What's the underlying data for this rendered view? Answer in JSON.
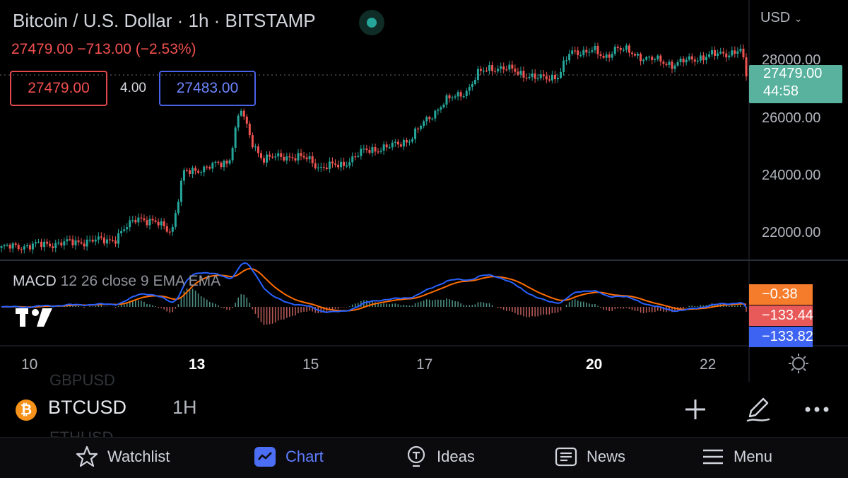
{
  "header": {
    "title": "Bitcoin / U.S. Dollar · 1h · BITSTAMP",
    "quote": "27479.00 −713.00 (−2.53%)",
    "sell_price": "27479.00",
    "spread": "4.00",
    "buy_price": "27483.00",
    "currency": "USD"
  },
  "price_axis": {
    "labels": [
      "28000.00",
      "26000.00",
      "24000.00",
      "22000.00"
    ],
    "last_price": "27479.00",
    "countdown": "44:58"
  },
  "macd": {
    "title": "MACD",
    "params": "12 26 close 9 EMA EMA",
    "histogram_value": "−0.38",
    "signal_value": "−133.44",
    "macd_value": "−133.82"
  },
  "time_axis": [
    {
      "label": "10",
      "bold": false
    },
    {
      "label": "13",
      "bold": true
    },
    {
      "label": "15",
      "bold": false
    },
    {
      "label": "17",
      "bold": false
    },
    {
      "label": "20",
      "bold": true
    },
    {
      "label": "22",
      "bold": false
    }
  ],
  "ghost_list": {
    "above": "GBPUSD",
    "below": "ETHUSD"
  },
  "symbol_bar": {
    "coin_glyph": "₿",
    "symbol": "BTCUSD",
    "interval": "1H",
    "tools": [
      "plus-icon",
      "pencil-icon",
      "more-icon"
    ]
  },
  "tabs": [
    {
      "label": "Watchlist",
      "icon": "star-icon",
      "active": false
    },
    {
      "label": "Chart",
      "icon": "chart-icon",
      "active": true
    },
    {
      "label": "Ideas",
      "icon": "bulb-icon",
      "active": false
    },
    {
      "label": "News",
      "icon": "news-icon",
      "active": false
    },
    {
      "label": "Menu",
      "icon": "menu-icon",
      "active": false
    }
  ],
  "colors": {
    "up": "#26a69a",
    "down": "#ef5350",
    "macd_line": "#2962ff",
    "signal_line": "#ff6d00",
    "accent": "#5f7dff"
  },
  "chart_data": {
    "type": "candlestick",
    "x_labels": [
      "10",
      "13",
      "15",
      "17",
      "20",
      "22"
    ],
    "y_labels": [
      22000,
      24000,
      26000,
      28000
    ],
    "close_path": [
      [
        0,
        21500
      ],
      [
        20,
        21800
      ],
      [
        24,
        22600
      ],
      [
        26,
        22400
      ],
      [
        28,
        22300
      ],
      [
        30,
        22100
      ],
      [
        32,
        24100
      ],
      [
        36,
        24300
      ],
      [
        40,
        24500
      ],
      [
        42,
        26400
      ],
      [
        44,
        25200
      ],
      [
        46,
        24600
      ],
      [
        50,
        24700
      ],
      [
        54,
        24600
      ],
      [
        56,
        24300
      ],
      [
        60,
        24400
      ],
      [
        64,
        24900
      ],
      [
        68,
        25000
      ],
      [
        72,
        25300
      ],
      [
        74,
        25800
      ],
      [
        78,
        26600
      ],
      [
        82,
        27000
      ],
      [
        84,
        27600
      ],
      [
        86,
        27800
      ],
      [
        90,
        27700
      ],
      [
        94,
        27400
      ],
      [
        98,
        27500
      ],
      [
        100,
        28300
      ],
      [
        104,
        28400
      ],
      [
        106,
        28100
      ],
      [
        108,
        28500
      ],
      [
        112,
        28200
      ],
      [
        114,
        28100
      ],
      [
        118,
        27900
      ],
      [
        122,
        28100
      ],
      [
        124,
        28200
      ],
      [
        128,
        28300
      ],
      [
        130,
        28400
      ],
      [
        131,
        27500
      ]
    ],
    "last_price": 27479
  }
}
